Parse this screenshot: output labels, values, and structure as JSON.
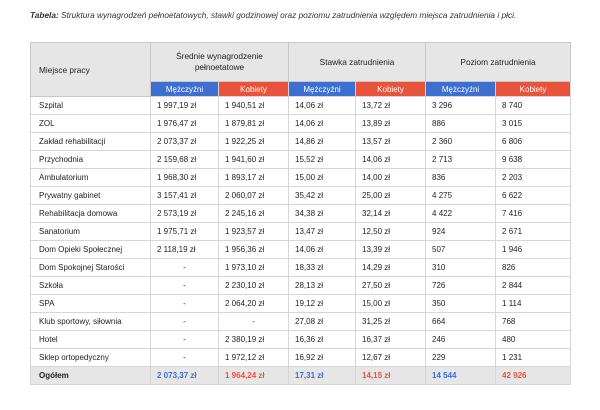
{
  "caption": {
    "label": "Tabela:",
    "text": "Struktura wynagrodzeń pełnoetatowych, stawki godzinowej oraz poziomu zatrudnienia względem miejsca zatrudnienia i płci."
  },
  "table": {
    "header": {
      "place": "Miejsce pracy",
      "groups": [
        "Średnie wynagrodzenie pełnoetatowe",
        "Stawka zatrudnienia",
        "Poziom zatrudnienia"
      ],
      "subheaders": [
        "Mężczyźni",
        "Kobiety",
        "Mężczyźni",
        "Kobiety",
        "Mężczyźni",
        "Kobiety"
      ]
    },
    "rows": [
      [
        "Szpital",
        "1 997,19 zł",
        "1 940,51 zł",
        "14,06 zł",
        "13,72 zł",
        "3 296",
        "8 740"
      ],
      [
        "ZOL",
        "1 976,47 zł",
        "1 879,81 zł",
        "14,06 zł",
        "13,89 zł",
        "886",
        "3 015"
      ],
      [
        "Zakład rehabilitacji",
        "2 073,37 zł",
        "1 922,25 zł",
        "14,86 zł",
        "13,57 zł",
        "2 360",
        "6 806"
      ],
      [
        "Przychodnia",
        "2 159,68 zł",
        "1 941,60 zł",
        "15,52 zł",
        "14,06 zł",
        "2 713",
        "9 638"
      ],
      [
        "Ambulatorium",
        "1 968,30 zł",
        "1 893,17 zł",
        "15,00 zł",
        "14,00 zł",
        "836",
        "2 203"
      ],
      [
        "Prywatny gabinet",
        "3 157,41 zł",
        "2 060,07 zł",
        "35,42 zł",
        "25,00 zł",
        "4 275",
        "6 622"
      ],
      [
        "Rehabilitacja domowa",
        "2 573,19 zł",
        "2 245,16 zł",
        "34,38 zł",
        "32,14 zł",
        "4 422",
        "7 416"
      ],
      [
        "Sanatorium",
        "1 975,71 zł",
        "1 923,57 zł",
        "13,47 zł",
        "12,50 zł",
        "924",
        "2 671"
      ],
      [
        "Dom Opieki Społecznej",
        "2 118,19 zł",
        "1 956,36 zł",
        "14,06 zł",
        "13,39 zł",
        "507",
        "1 946"
      ],
      [
        "Dom Spokojnej Starości",
        "-",
        "1 973,10 zł",
        "18,33 zł",
        "14,29 zł",
        "310",
        "826"
      ],
      [
        "Szkoła",
        "-",
        "2 230,10 zł",
        "28,13 zł",
        "27,50 zł",
        "726",
        "2 844"
      ],
      [
        "SPA",
        "-",
        "2 064,20 zł",
        "19,12 zł",
        "15,00 zł",
        "350",
        "1 114"
      ],
      [
        "Klub sportowy, siłownia",
        "-",
        "-",
        "27,08 zł",
        "31,25 zł",
        "664",
        "768"
      ],
      [
        "Hotel",
        "-",
        "2 380,19 zł",
        "16,36 zł",
        "16,37 zł",
        "246",
        "480"
      ],
      [
        "Sklep ortopedyczny",
        "-",
        "1 972,12 zł",
        "16,92 zł",
        "12,67 zł",
        "229",
        "1 231"
      ]
    ],
    "total": [
      "Ogółem",
      "2 073,37 zł",
      "1 964,24 zł",
      "17,31 zł",
      "14,15 zł",
      "14 544",
      "42 926"
    ]
  }
}
